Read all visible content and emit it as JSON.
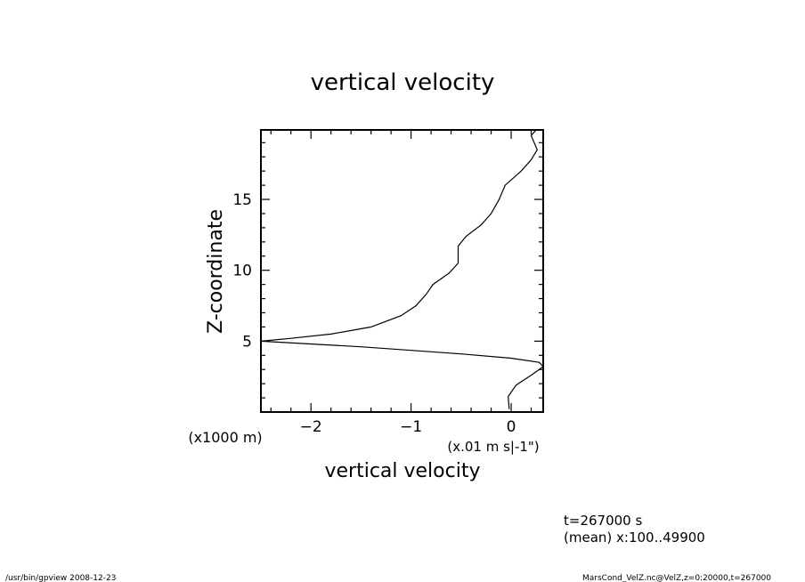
{
  "chart_data": {
    "type": "line",
    "title": "vertical velocity",
    "xlabel": "vertical velocity",
    "xunits": "(x.01 m s|-1\")",
    "ylabel": "Z-coordinate",
    "yunits": "(x1000 m)",
    "xlim": [
      -2.5,
      0.32
    ],
    "ylim": [
      0,
      19.9
    ],
    "x_ticks": [
      -2,
      -1,
      0
    ],
    "y_ticks": [
      5,
      10,
      15
    ],
    "grid": false,
    "series": [
      {
        "points": [
          [
            0.25,
            19.9
          ],
          [
            0.2,
            19.5
          ],
          [
            0.26,
            18.5
          ],
          [
            0.2,
            17.8
          ],
          [
            0.1,
            17.0
          ],
          [
            -0.06,
            16.0
          ],
          [
            -0.12,
            15.0
          ],
          [
            -0.2,
            14.0
          ],
          [
            -0.3,
            13.2
          ],
          [
            -0.45,
            12.4
          ],
          [
            -0.53,
            11.7
          ],
          [
            -0.53,
            10.5
          ],
          [
            -0.62,
            9.8
          ],
          [
            -0.78,
            9.0
          ],
          [
            -0.85,
            8.3
          ],
          [
            -0.95,
            7.5
          ],
          [
            -1.1,
            6.8
          ],
          [
            -1.4,
            6.0
          ],
          [
            -1.8,
            5.5
          ],
          [
            -2.2,
            5.2
          ],
          [
            -2.5,
            5.0
          ],
          [
            -1.5,
            4.6
          ],
          [
            -0.5,
            4.1
          ],
          [
            0.0,
            3.8
          ],
          [
            0.28,
            3.5
          ],
          [
            0.32,
            3.2
          ],
          [
            0.2,
            2.6
          ],
          [
            0.05,
            1.9
          ],
          [
            -0.03,
            1.1
          ],
          [
            -0.02,
            0.2
          ]
        ]
      }
    ]
  },
  "info": {
    "time_label": "t=267000 s",
    "mean_label": "(mean) x:100..49900"
  },
  "footer": {
    "left": "/usr/bin/gpview   2008-12-23",
    "right": "MarsCond_VelZ.nc@VelZ,z=0:20000,t=267000"
  }
}
